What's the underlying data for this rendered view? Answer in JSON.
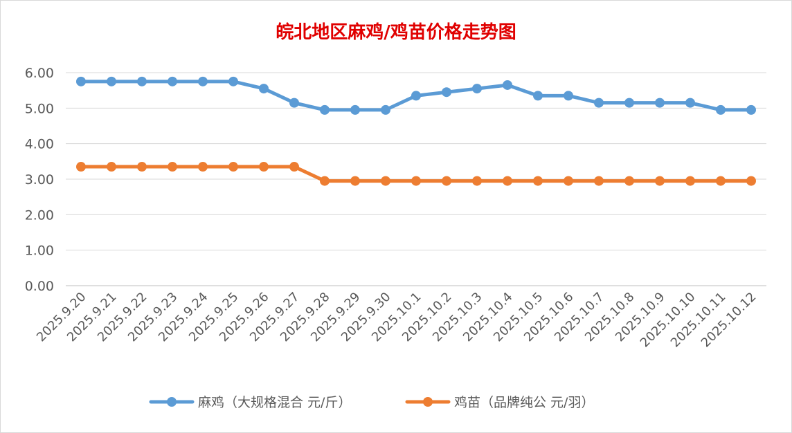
{
  "chart_data": {
    "type": "line",
    "title": "皖北地区麻鸡/鸡苗价格走势图",
    "categories": [
      "2025.9.20",
      "2025.9.21",
      "2025.9.22",
      "2025.9.23",
      "2025.9.24",
      "2025.9.25",
      "2025.9.26",
      "2025.9.27",
      "2025.9.28",
      "2025.9.29",
      "2025.9.30",
      "2025.10.1",
      "2025.10.2",
      "2025.10.3",
      "2025.10.4",
      "2025.10.5",
      "2025.10.6",
      "2025.10.7",
      "2025.10.8",
      "2025.10.9",
      "2025.10.10",
      "2025.10.11",
      "2025.10.12"
    ],
    "yticks": [
      "0.00",
      "1.00",
      "2.00",
      "3.00",
      "4.00",
      "5.00",
      "6.00"
    ],
    "ylim": [
      0,
      6
    ],
    "grid": true,
    "legend_position": "bottom",
    "series": [
      {
        "name": "麻鸡（大规格混合 元/斤）",
        "color": "#5b9bd5",
        "values": [
          5.75,
          5.75,
          5.75,
          5.75,
          5.75,
          5.75,
          5.55,
          5.15,
          4.95,
          4.95,
          4.95,
          5.35,
          5.45,
          5.55,
          5.65,
          5.35,
          5.35,
          5.15,
          5.15,
          5.15,
          5.15,
          4.95,
          4.95
        ]
      },
      {
        "name": "鸡苗（品牌纯公 元/羽）",
        "color": "#ed7d31",
        "values": [
          3.35,
          3.35,
          3.35,
          3.35,
          3.35,
          3.35,
          3.35,
          3.35,
          2.95,
          2.95,
          2.95,
          2.95,
          2.95,
          2.95,
          2.95,
          2.95,
          2.95,
          2.95,
          2.95,
          2.95,
          2.95,
          2.95,
          2.95
        ]
      }
    ]
  }
}
